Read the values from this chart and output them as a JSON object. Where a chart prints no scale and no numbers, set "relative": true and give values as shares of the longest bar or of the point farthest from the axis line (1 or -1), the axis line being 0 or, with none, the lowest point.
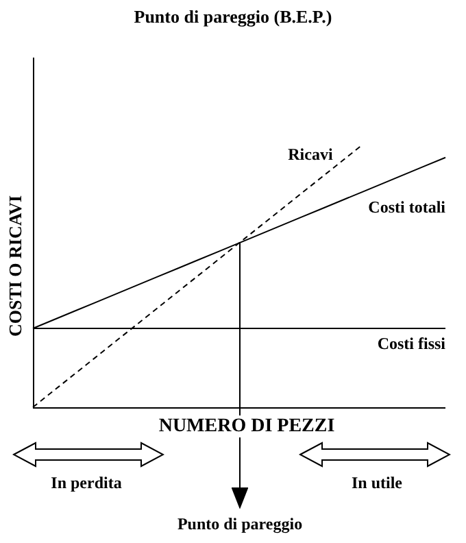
{
  "chart_data": {
    "type": "line",
    "title": "Punto di pareggio (B.E.P.)",
    "xlabel": "NUMERO DI PEZZI",
    "ylabel": "COSTI O RICAVI",
    "relative": true,
    "legend": false,
    "marker": "none",
    "categories": [
      null,
      null,
      null,
      null,
      null,
      null,
      null,
      null,
      null,
      null,
      null,
      null,
      null,
      null,
      null,
      null,
      null,
      null,
      null,
      null,
      null
    ],
    "series": [
      {
        "name": "Ricavi",
        "color": "#000000",
        "line_style": "dashed",
        "values": [
          0,
          0.0625,
          0.125,
          0.1875,
          0.25,
          0.3125,
          0.375,
          0.4375,
          0.5,
          0.5625,
          0.625,
          0.6875,
          0.75,
          0.8125,
          0.875,
          0.9375,
          1,
          null,
          null,
          null,
          null
        ]
      },
      {
        "name": "Costi totali",
        "color": "#000000",
        "line_style": "solid",
        "values": [
          0.3,
          0.3325,
          0.365,
          0.3975,
          0.43,
          0.4625,
          0.495,
          0.5275,
          0.56,
          0.5925,
          0.625,
          0.6575,
          0.69,
          0.7225,
          0.755,
          0.7875,
          0.82,
          0.8525,
          0.885,
          0.9175,
          0.95
        ]
      },
      {
        "name": "Costi fissi",
        "color": "#000000",
        "line_style": "solid",
        "values": [
          0.3,
          0.3,
          0.3,
          0.3,
          0.3,
          0.3,
          0.3,
          0.3,
          0.3,
          0.3,
          0.3,
          0.3,
          0.3,
          0.3,
          0.3,
          0.3,
          0.3,
          0.3,
          0.3,
          0.3,
          0.3
        ]
      }
    ],
    "annotations": [
      "In perdita",
      "In utile",
      "Punto di pareggio"
    ]
  }
}
